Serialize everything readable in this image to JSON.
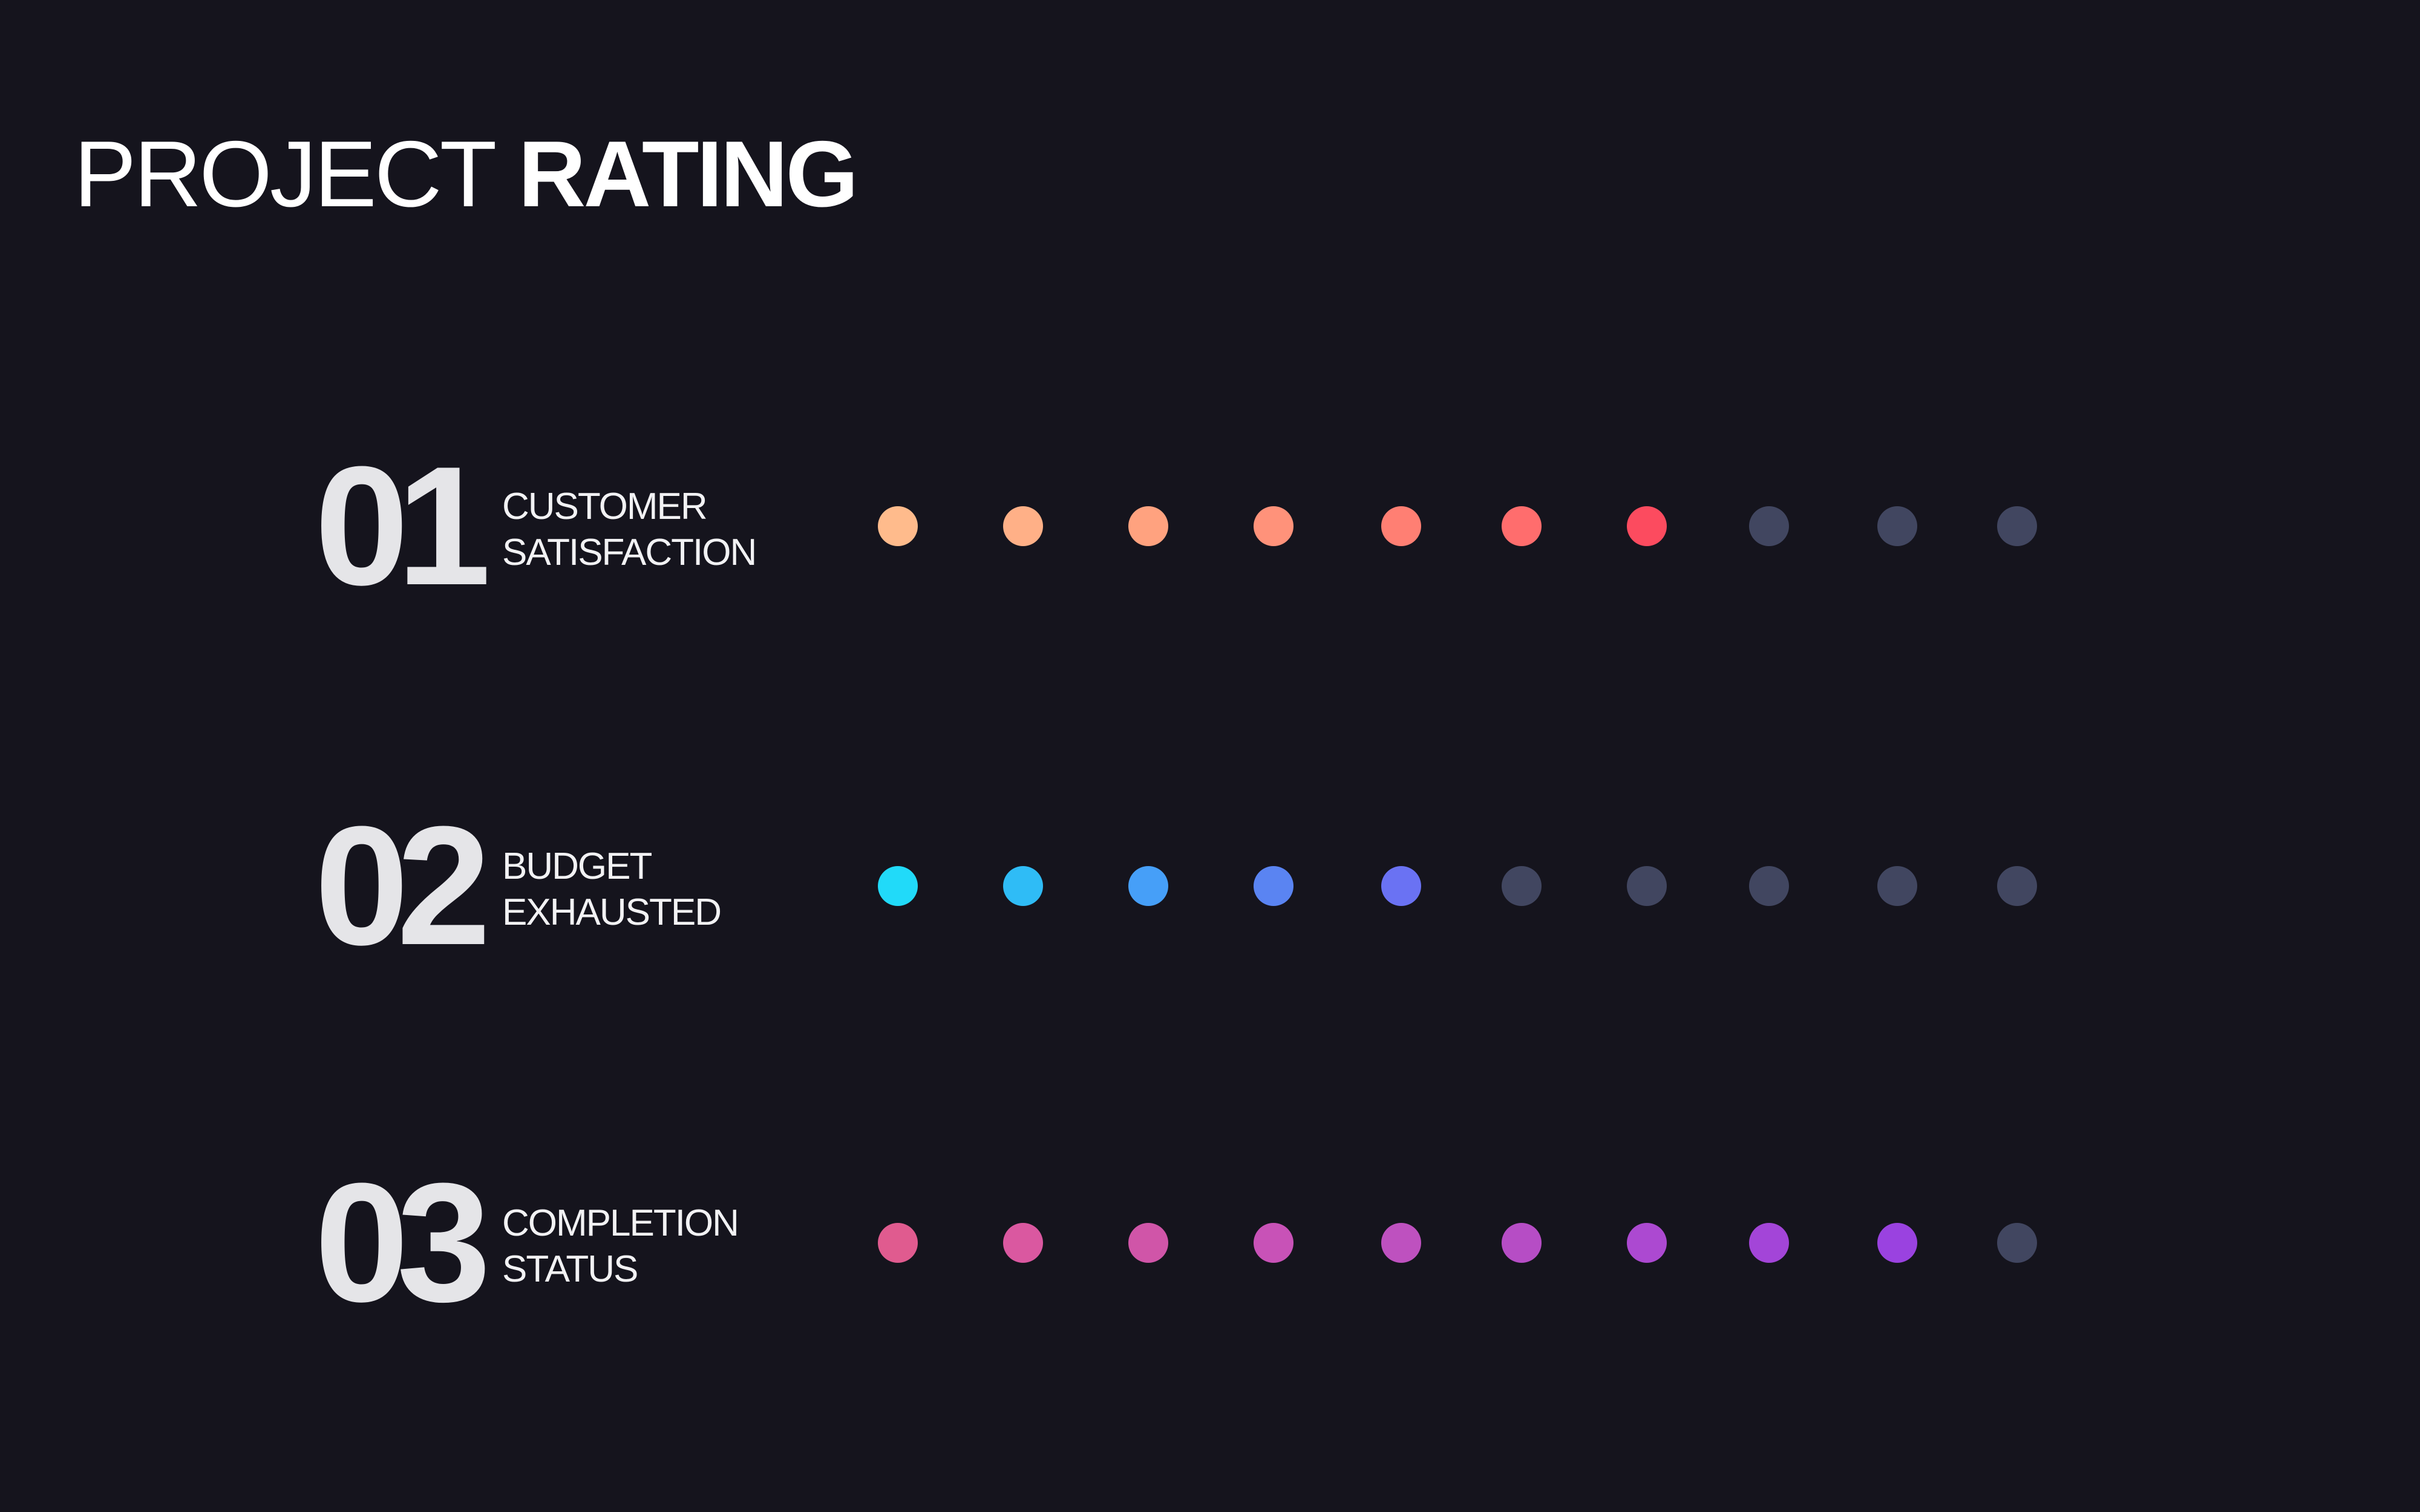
{
  "page": {
    "background": "#15141d",
    "title_light": "PROJECT",
    "title_bold": "RATING"
  },
  "chart_data": {
    "type": "dot-rating",
    "scale_max": 10,
    "inactive_color": "#414660",
    "rows": [
      {
        "number": "01",
        "label_line1": "CUSTOMER",
        "label_line2": "SATISFACTION",
        "value": 7,
        "colors": [
          "#ffbb8c",
          "#ffb087",
          "#ffa27f",
          "#ff927a",
          "#ff7f73",
          "#ff6d6d",
          "#fc4b5f"
        ]
      },
      {
        "number": "02",
        "label_line1": "BUDGET",
        "label_line2": "EXHAUSTED",
        "value": 5,
        "colors": [
          "#21daf9",
          "#2fbcf6",
          "#469ff8",
          "#5a84f2",
          "#6a72f3"
        ]
      },
      {
        "number": "03",
        "label_line1": "COMPLETION",
        "label_line2": "STATUS",
        "value": 9,
        "colors": [
          "#e05b8f",
          "#da58a0",
          "#d055a8",
          "#c852b7",
          "#be51bf",
          "#b64dc5",
          "#ac49d1",
          "#a345d8",
          "#9a42e0"
        ]
      }
    ]
  }
}
